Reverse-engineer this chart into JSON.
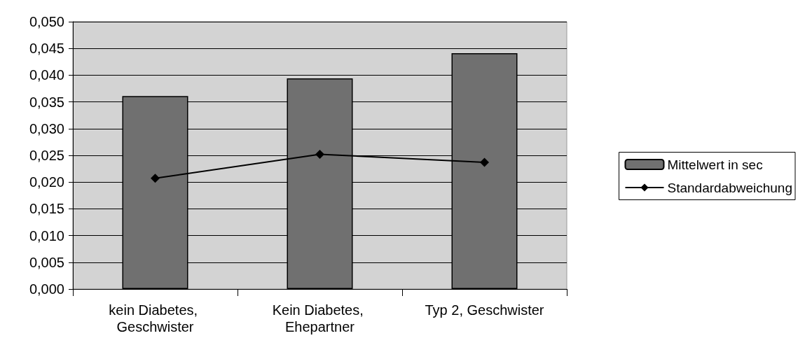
{
  "chart_data": {
    "type": "bar",
    "categories": [
      "kein Diabetes, Geschwister",
      "Kein Diabetes, Ehepartner",
      "Typ 2, Geschwister"
    ],
    "series": [
      {
        "name": "Mittelwert in sec",
        "color": "#707070",
        "values": [
          0.0361,
          0.0394,
          0.0441
        ]
      },
      {
        "name": "Standardabweichung",
        "type": "line",
        "color": "#000000",
        "values": [
          0.0207,
          0.0252,
          0.0237
        ],
        "marker": "diamond",
        "line_style": "solid"
      }
    ],
    "ylim": [
      0,
      0.05
    ],
    "yticks": [
      {
        "value": 0,
        "label": "0,000"
      },
      {
        "value": 0.005,
        "label": "0,005"
      },
      {
        "value": 0.01,
        "label": "0,010"
      },
      {
        "value": 0.015,
        "label": "0,015"
      },
      {
        "value": 0.02,
        "label": "0,020"
      },
      {
        "value": 0.025,
        "label": "0,025"
      },
      {
        "value": 0.03,
        "label": "0,030"
      },
      {
        "value": 0.035,
        "label": "0,035"
      },
      {
        "value": 0.04,
        "label": "0,040"
      },
      {
        "value": 0.045,
        "label": "0,045"
      },
      {
        "value": 0.05,
        "label": "0,050"
      }
    ],
    "grid": "y",
    "legend": "right"
  }
}
